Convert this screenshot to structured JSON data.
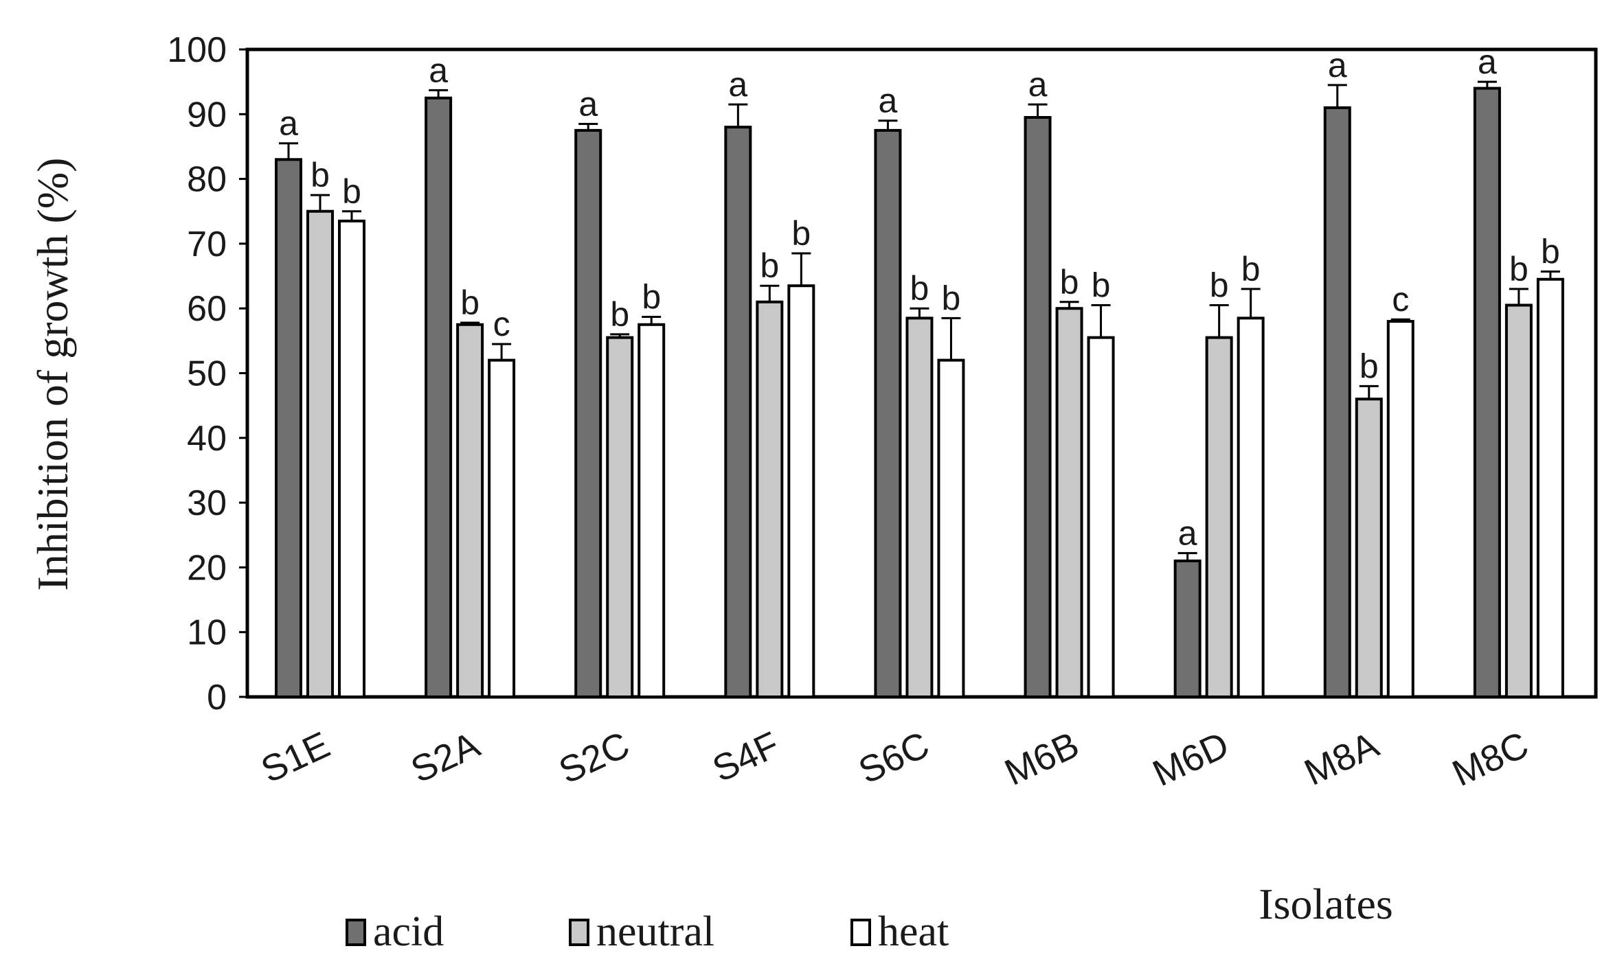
{
  "chart_data": {
    "type": "bar",
    "title": "",
    "xlabel": "Isolates",
    "ylabel": "Inhibition of growth (%)",
    "ylim": [
      0,
      100
    ],
    "yticks": [
      0,
      10,
      20,
      30,
      40,
      50,
      60,
      70,
      80,
      90,
      100
    ],
    "categories": [
      "S1E",
      "S2A",
      "S2C",
      "S4F",
      "S6C",
      "M6B",
      "M6D",
      "M8A",
      "M8C"
    ],
    "series": [
      {
        "name": "acid",
        "color": "#707070",
        "values": [
          83,
          92.5,
          87.5,
          88,
          87.5,
          89.5,
          21,
          91,
          94
        ],
        "errors": [
          2.5,
          1.2,
          1,
          3.5,
          1.5,
          2,
          1.2,
          3.5,
          1
        ],
        "letters": [
          "a",
          "a",
          "a",
          "a",
          "a",
          "a",
          "a",
          "a",
          "a"
        ]
      },
      {
        "name": "neutral",
        "color": "#c8c8c8",
        "values": [
          75,
          57.5,
          55.5,
          61,
          58.5,
          60,
          55.5,
          46,
          60.5
        ],
        "errors": [
          2.5,
          0.3,
          0.5,
          2.5,
          1.5,
          1,
          5,
          2,
          2.5
        ],
        "letters": [
          "b",
          "b",
          "b",
          "b",
          "b",
          "b",
          "b",
          "b",
          "b"
        ]
      },
      {
        "name": "heat",
        "color": "#ffffff",
        "values": [
          73.5,
          52,
          57.5,
          63.5,
          52,
          55.5,
          58.5,
          58,
          64.5
        ],
        "errors": [
          1.5,
          2.5,
          1.2,
          5,
          6.5,
          5,
          4.5,
          0.3,
          1.2
        ],
        "letters": [
          "b",
          "c",
          "b",
          "b",
          "b",
          "b",
          "b",
          "c",
          "b"
        ]
      }
    ],
    "legend": [
      "acid",
      "neutral",
      "heat"
    ],
    "legend_position": "bottom-left",
    "grid": false
  }
}
